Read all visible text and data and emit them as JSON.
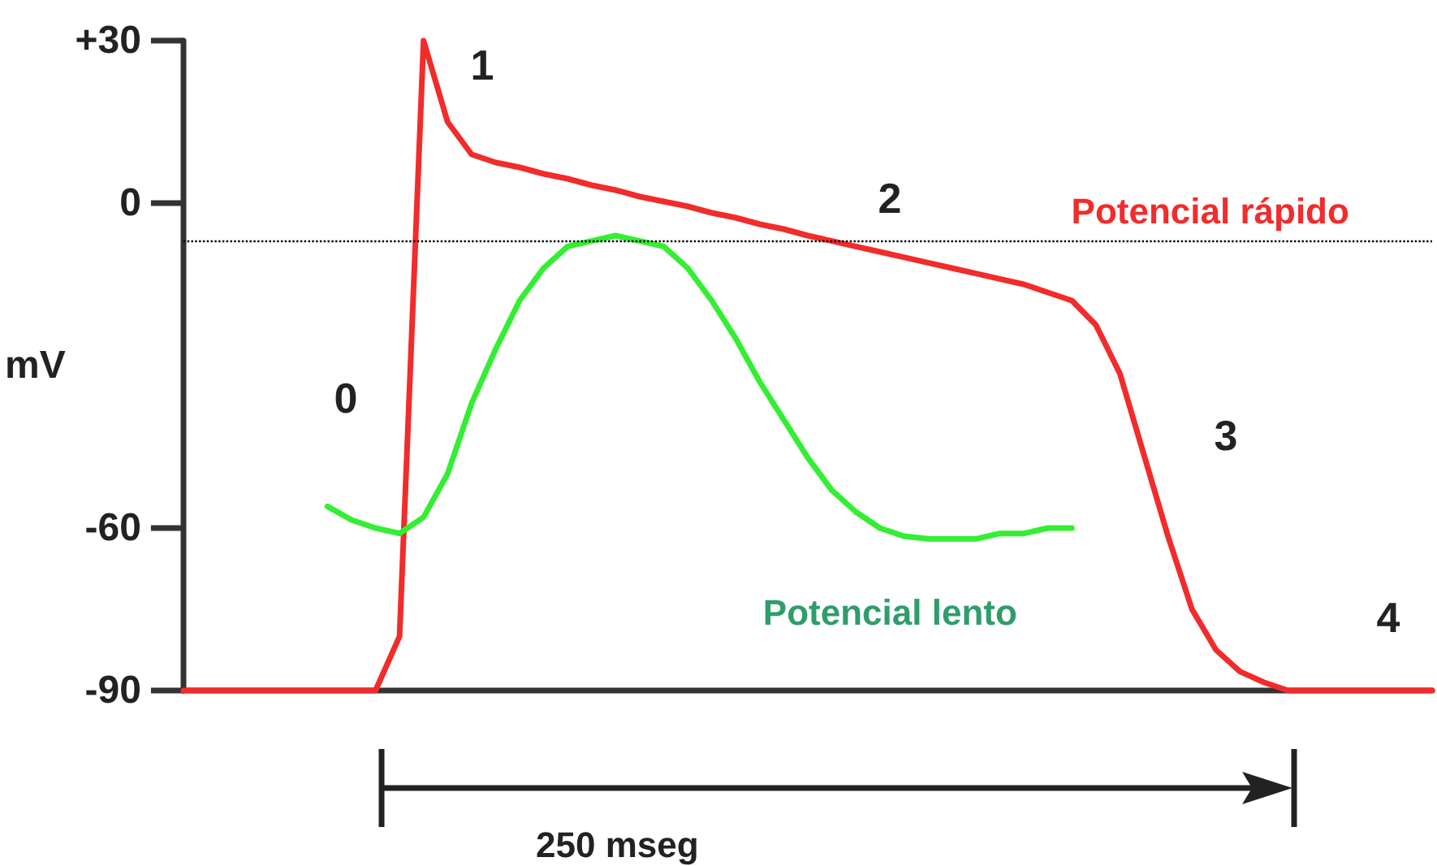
{
  "chart_data": {
    "type": "line",
    "ylabel": "mV",
    "categories": [
      null,
      null,
      null,
      null,
      null,
      null,
      null,
      null,
      null,
      null,
      null,
      null,
      null,
      null,
      null,
      null,
      null,
      null,
      null,
      null,
      null,
      null,
      null,
      null,
      null,
      null,
      null,
      null,
      null,
      null,
      null,
      null,
      null,
      null,
      null,
      null,
      null,
      null,
      null,
      null,
      null,
      null,
      null,
      null,
      null,
      null,
      null,
      null,
      null,
      null,
      null,
      null,
      null
    ],
    "ylim": [
      -90,
      30
    ],
    "yticks": [
      {
        "value": 30,
        "label": "+30"
      },
      0,
      -60,
      -90
    ],
    "grid": false,
    "marker": "none",
    "line_style": "solid",
    "series": [
      {
        "name": "Potencial rápido",
        "color": "#f22b2b",
        "values": [
          -90,
          -90,
          -90,
          -90,
          -90,
          -90,
          -90,
          -90,
          -90,
          -80,
          30,
          15,
          9,
          7.5,
          6.6,
          5.4,
          4.5,
          3.3,
          2.4,
          1.2,
          0.3,
          -0.6,
          -1.8,
          -2.7,
          -3.9,
          -4.8,
          -6,
          -7,
          -8,
          -9,
          -10,
          -11,
          -12,
          -13,
          -14,
          -15,
          -16.5,
          -18,
          -22.5,
          -31.5,
          -46.5,
          -61.5,
          -75,
          -82.5,
          -86.5,
          -88.5,
          -90,
          -90,
          -90,
          -90,
          -90,
          -90,
          -90
        ]
      },
      {
        "name": "Potencial lento",
        "color": "#33ee33",
        "values": [
          null,
          null,
          null,
          null,
          null,
          null,
          -56,
          -58.5,
          -60,
          -61,
          -58,
          -50,
          -37,
          -27,
          -18,
          -12,
          -8,
          -7,
          -6,
          -7,
          -8,
          -12,
          -18,
          -25,
          -33,
          -40,
          -47,
          -53,
          -57,
          -60,
          -61.5,
          -62,
          -62,
          -62,
          -61,
          -61,
          -60,
          -60,
          null,
          null,
          null,
          null,
          null,
          null,
          null,
          null,
          null,
          null,
          null,
          null,
          null,
          null,
          null
        ]
      }
    ],
    "ref_lines": [
      {
        "axis": "y",
        "value": -7,
        "color": "#000000",
        "line_style": "dotted"
      }
    ],
    "annotations": [
      "0",
      "1",
      "2",
      "3",
      "4",
      "250 mseg"
    ]
  }
}
